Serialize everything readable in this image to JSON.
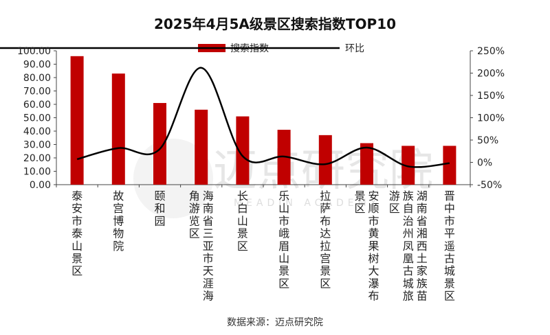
{
  "watermark": {
    "text": "迈点研究院",
    "subtext": "MEADIN ACADEMY"
  },
  "chart_data": {
    "type": "bar",
    "title": "2025年4月5A级景区搜索指数TOP10",
    "source": "数据来源：迈点研究院",
    "categories": [
      "泰安市泰山景区",
      "故宫博物院",
      "颐和园",
      "海南省三亚市天涯海角游览区",
      "长白山景区",
      "乐山市峨眉山景区",
      "拉萨布达拉宫景区",
      "安顺市黄果树大瀑布景区",
      "湖南省湘西土家族苗族自治州凤凰古城旅游区",
      "晋中市平遥古城景区"
    ],
    "category_label_columns": [
      [
        "泰安市泰山景区"
      ],
      [
        "故宫博物院"
      ],
      [
        "颐和园"
      ],
      [
        "海南省三亚市天涯海",
        "角游览区"
      ],
      [
        "长白山景区"
      ],
      [
        "乐山市峨眉山景区"
      ],
      [
        "拉萨布达拉宫景区"
      ],
      [
        "安顺市黄果树大瀑布",
        "景区"
      ],
      [
        "湖南省湘西土家族苗",
        "族自治州凤凰古城旅",
        "游区"
      ],
      [
        "晋中市平遥古城景区"
      ]
    ],
    "series": [
      {
        "name": "搜索指数",
        "chart_type": "bar",
        "axis": "left",
        "color": "#c00000",
        "values": [
          96,
          83,
          61,
          56,
          51,
          41,
          37,
          31,
          29,
          29
        ]
      },
      {
        "name": "环比",
        "chart_type": "line",
        "axis": "right",
        "color": "#000000",
        "values": [
          0.07,
          0.32,
          0.3,
          2.12,
          0.14,
          0.13,
          -0.04,
          0.33,
          -0.09,
          -0.02
        ]
      }
    ],
    "y_left": {
      "min": 0,
      "max": 100,
      "step": 10,
      "tick_labels": [
        "0.00",
        "10.00",
        "20.00",
        "30.00",
        "40.00",
        "50.00",
        "60.00",
        "70.00",
        "80.00",
        "90.00",
        "100.00"
      ]
    },
    "y_right": {
      "min": -0.5,
      "max": 2.5,
      "step": 0.5,
      "tick_labels": [
        "-50%",
        "0%",
        "50%",
        "100%",
        "150%",
        "200%",
        "250%"
      ]
    },
    "grid": false,
    "legend_position": "top-center"
  }
}
